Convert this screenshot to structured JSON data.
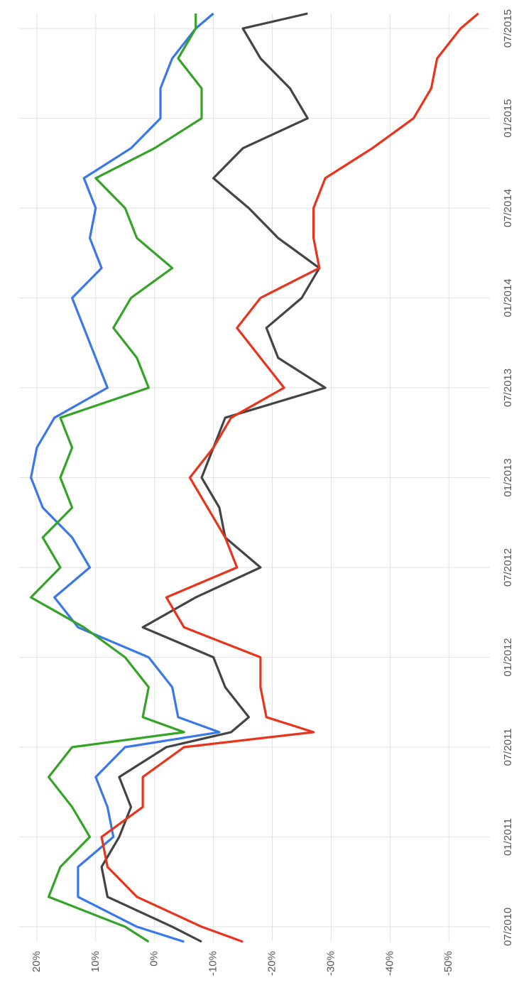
{
  "chart_data": {
    "type": "line",
    "x": [
      "06/2010",
      "07/2010",
      "09/2010",
      "11/2010",
      "01/2011",
      "03/2011",
      "05/2011",
      "07/2011",
      "08/2011",
      "09/2011",
      "11/2011",
      "01/2012",
      "03/2012",
      "05/2012",
      "07/2012",
      "09/2012",
      "11/2012",
      "01/2013",
      "03/2013",
      "05/2013",
      "07/2013",
      "09/2013",
      "11/2013",
      "01/2014",
      "03/2014",
      "05/2014",
      "07/2014",
      "09/2014",
      "11/2014",
      "01/2015",
      "03/2015",
      "05/2015",
      "07/2015",
      "08/2015"
    ],
    "series": [
      {
        "color": "#3b78e7",
        "values": [
          -5,
          3,
          13,
          13,
          7,
          8,
          10,
          5,
          -11,
          -4,
          -3,
          1,
          13,
          17,
          11,
          14,
          19,
          21,
          20,
          17,
          8,
          10,
          12,
          14,
          9,
          11,
          10,
          12,
          4,
          -1,
          -1,
          -3,
          -7,
          -10
        ]
      },
      {
        "color": "#35a327",
        "values": [
          1,
          5,
          18,
          16,
          11,
          14,
          18,
          14,
          -5,
          2,
          1,
          5,
          12,
          21,
          16,
          19,
          14,
          16,
          14,
          16,
          1,
          3,
          7,
          4,
          -3,
          3,
          5,
          10,
          0,
          -8,
          -8,
          -4,
          -7,
          -7
        ]
      },
      {
        "color": "#444444",
        "values": [
          -8,
          -3,
          8,
          9,
          6,
          4,
          6,
          -2,
          -13,
          -16,
          -12,
          -10,
          2,
          -7,
          -18,
          -12,
          -11,
          -8,
          -10,
          -12,
          -29,
          -21,
          -19,
          -25,
          -28,
          -21,
          -16,
          -10,
          -15,
          -26,
          -23,
          -18,
          -15,
          -26
        ]
      },
      {
        "color": "#e8341c",
        "values": [
          -15,
          -8,
          3,
          8,
          9,
          2,
          2,
          -5,
          -27,
          -19,
          -18,
          -18,
          -5,
          -2,
          -14,
          -12,
          -9,
          -6,
          -10,
          -13,
          -22,
          -18,
          -14,
          -18,
          -28,
          -27,
          -27,
          -29,
          -37,
          -44,
          -47,
          -48,
          -52,
          -55
        ]
      }
    ],
    "xlim": [
      "06/2010",
      "08/2015"
    ],
    "xticks": [
      "07/2010",
      "01/2011",
      "07/2011",
      "01/2012",
      "07/2012",
      "01/2013",
      "07/2013",
      "01/2014",
      "07/2014",
      "01/2015",
      "07/2015"
    ],
    "ylim": [
      -56,
      23
    ],
    "yticks": [
      {
        "value": 20,
        "label": "20%"
      },
      {
        "value": 10,
        "label": "10%"
      },
      {
        "value": 0,
        "label": "0%"
      },
      {
        "value": -10,
        "label": "-10%"
      },
      {
        "value": -20,
        "label": "-20%"
      },
      {
        "value": -30,
        "label": "-30%"
      },
      {
        "value": -40,
        "label": "-40%"
      },
      {
        "value": -50,
        "label": "-50%"
      }
    ],
    "grid": true
  }
}
